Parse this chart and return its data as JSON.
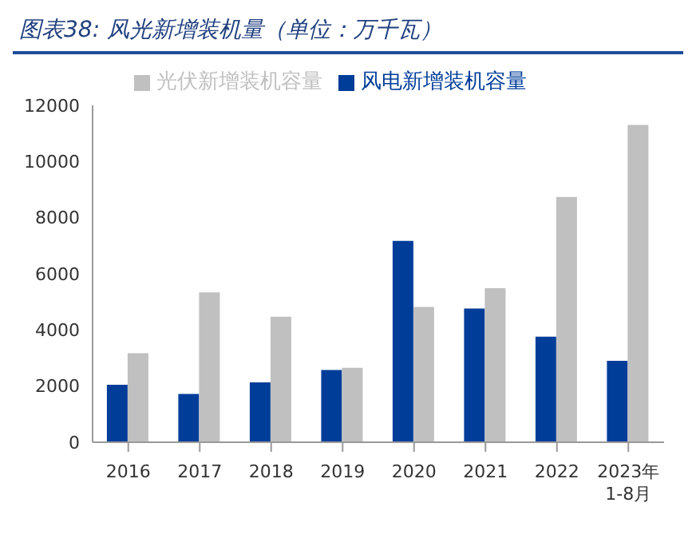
{
  "chart_data": {
    "type": "bar",
    "title": "图表38: 风光新增装机量（单位：万千瓦）",
    "categories": [
      "2016",
      "2017",
      "2018",
      "2019",
      "2020",
      "2021",
      "2022",
      "2023年\n1-8月"
    ],
    "series": [
      {
        "name": "风电新增装机容量",
        "color": "#003d99",
        "values": [
          2050,
          1720,
          2130,
          2570,
          7170,
          4760,
          3760,
          2900
        ]
      },
      {
        "name": "光伏新增装机容量",
        "color": "#c0c0c0",
        "values": [
          3170,
          5340,
          4470,
          2650,
          4820,
          5490,
          8740,
          11300
        ]
      }
    ],
    "ylim": [
      0,
      12000
    ],
    "yticks": [
      0,
      2000,
      4000,
      6000,
      8000,
      10000,
      12000
    ],
    "grid": false,
    "legend": "top"
  }
}
